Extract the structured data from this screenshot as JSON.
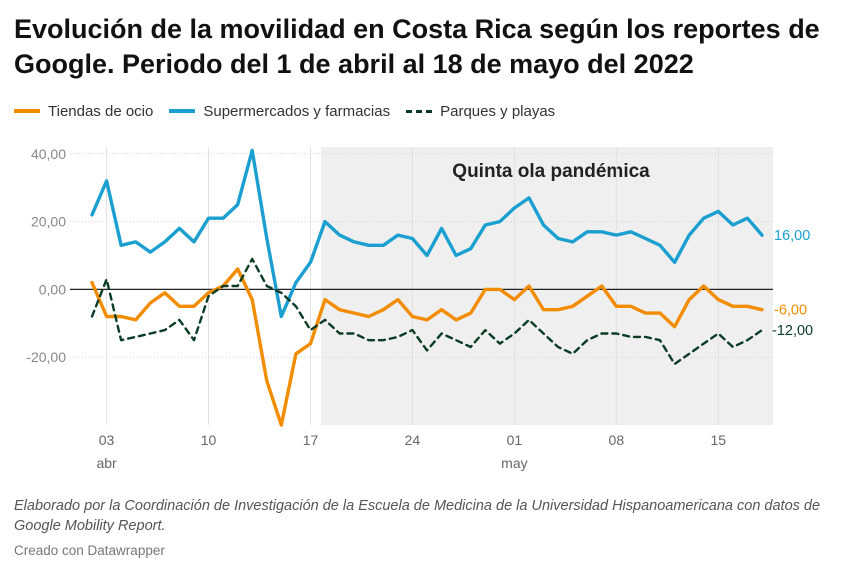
{
  "title": "Evolución de la movilidad en Costa Rica según los reportes de Google. Periodo del 1 de abril al 18 de mayo del 2022",
  "notes": "Elaborado por la Coordinación de Investigación de la Escuela de Medicina de la Universidad Hispanoamericana con datos de Google Mobility Report.",
  "credit": "Creado con Datawrapper",
  "chart_data": {
    "type": "line",
    "title": "",
    "xlabel": "",
    "ylabel": "",
    "ylim": [
      -40,
      42
    ],
    "yticks": [
      40,
      20,
      0,
      -20
    ],
    "ytick_labels": [
      "40,00",
      "20,00",
      "0,00",
      "-20,00"
    ],
    "x": [
      "2022-04-02",
      "2022-04-03",
      "2022-04-04",
      "2022-04-05",
      "2022-04-06",
      "2022-04-07",
      "2022-04-08",
      "2022-04-09",
      "2022-04-10",
      "2022-04-11",
      "2022-04-12",
      "2022-04-13",
      "2022-04-14",
      "2022-04-15",
      "2022-04-16",
      "2022-04-17",
      "2022-04-18",
      "2022-04-19",
      "2022-04-20",
      "2022-04-21",
      "2022-04-22",
      "2022-04-23",
      "2022-04-24",
      "2022-04-25",
      "2022-04-26",
      "2022-04-27",
      "2022-04-28",
      "2022-04-29",
      "2022-04-30",
      "2022-05-01",
      "2022-05-02",
      "2022-05-03",
      "2022-05-04",
      "2022-05-05",
      "2022-05-06",
      "2022-05-07",
      "2022-05-08",
      "2022-05-09",
      "2022-05-10",
      "2022-05-11",
      "2022-05-12",
      "2022-05-13",
      "2022-05-14",
      "2022-05-15",
      "2022-05-16",
      "2022-05-17",
      "2022-05-18"
    ],
    "xticks": [
      {
        "date": "2022-04-03",
        "label": "03",
        "sublabel": "abr"
      },
      {
        "date": "2022-04-10",
        "label": "10",
        "sublabel": ""
      },
      {
        "date": "2022-04-17",
        "label": "17",
        "sublabel": ""
      },
      {
        "date": "2022-04-24",
        "label": "24",
        "sublabel": ""
      },
      {
        "date": "2022-05-01",
        "label": "01",
        "sublabel": "may"
      },
      {
        "date": "2022-05-08",
        "label": "08",
        "sublabel": ""
      },
      {
        "date": "2022-05-15",
        "label": "15",
        "sublabel": ""
      }
    ],
    "grid": true,
    "legend": "top-left",
    "shaded_region": {
      "start": "2022-04-18",
      "end": "2022-05-18",
      "label": "Quinta ola pandémica"
    },
    "series": [
      {
        "name": "Tiendas de ocio",
        "color": "#f28c00",
        "style": "solid",
        "end_label": "-6,00",
        "values": [
          2,
          -8,
          -8,
          -9,
          -4,
          -1,
          -5,
          -5,
          -1,
          1,
          6,
          -3,
          -27,
          -40,
          -19,
          -16,
          -3,
          -6,
          -7,
          -8,
          -6,
          -3,
          -8,
          -9,
          -6,
          -9,
          -7,
          0,
          0,
          -3,
          1,
          -6,
          -6,
          -5,
          -2,
          1,
          -5,
          -5,
          -7,
          -7,
          -11,
          -3,
          1,
          -3,
          -5,
          -5,
          -6
        ]
      },
      {
        "name": "Supermercados y farmacias",
        "color": "#1a9fd0",
        "style": "solid",
        "end_label": "16,00",
        "values": [
          22,
          32,
          13,
          14,
          11,
          14,
          18,
          14,
          21,
          21,
          25,
          41,
          15,
          -8,
          2,
          8,
          20,
          16,
          14,
          13,
          13,
          16,
          15,
          10,
          18,
          10,
          12,
          19,
          20,
          24,
          27,
          19,
          15,
          14,
          17,
          17,
          16,
          17,
          15,
          13,
          8,
          16,
          21,
          23,
          19,
          21,
          16
        ]
      },
      {
        "name": "Parques y playas",
        "color": "#0b3d24",
        "style": "dashed",
        "end_label": "-12,00",
        "values": [
          -8,
          3,
          -15,
          -14,
          -13,
          -12,
          -9,
          -15,
          -2,
          1,
          1,
          9,
          1,
          -1,
          -5,
          -12,
          -9,
          -13,
          -13,
          -15,
          -15,
          -14,
          -12,
          -18,
          -13,
          -15,
          -17,
          -12,
          -16,
          -13,
          -9,
          -13,
          -17,
          -19,
          -15,
          -13,
          -13,
          -14,
          -14,
          -15,
          -22,
          -19,
          -16,
          -13,
          -17,
          -15,
          -12
        ]
      }
    ]
  }
}
